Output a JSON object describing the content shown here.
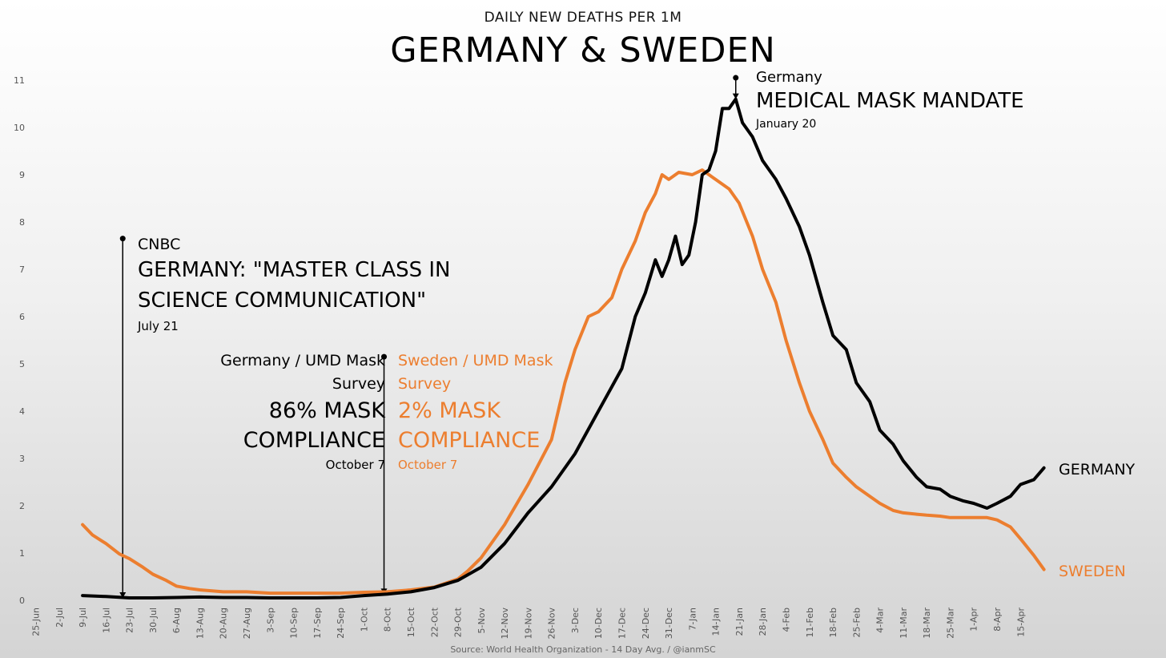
{
  "header": {
    "subtitle": "DAILY NEW DEATHS PER 1M",
    "title": "GERMANY & SWEDEN"
  },
  "footer": {
    "source": "Source: World Health Organization - 14 Day Avg.  / @ianmSC"
  },
  "colors": {
    "germany": "#000000",
    "sweden": "#ec7e2f",
    "text": "#000000",
    "axis_text": "#555555"
  },
  "annotations": {
    "cnbc": {
      "source": "CNBC",
      "headline_line1": "GERMANY: \"MASTER CLASS IN",
      "headline_line2": "SCIENCE COMMUNICATION\"",
      "date": "July 21"
    },
    "germany_survey": {
      "line1": "Germany / UMD Mask",
      "line2": "Survey",
      "value_line1": "86% MASK",
      "value_line2": "COMPLIANCE",
      "date": "October 7"
    },
    "sweden_survey": {
      "line1": "Sweden / UMD Mask",
      "line2": "Survey",
      "value_line1": "2% MASK",
      "value_line2": "COMPLIANCE",
      "date": "October 7"
    },
    "mandate": {
      "country": "Germany",
      "headline": "MEDICAL MASK MANDATE",
      "date": "January 20"
    },
    "end_labels": {
      "germany": "GERMANY",
      "sweden": "SWEDEN"
    }
  },
  "chart_data": {
    "type": "line",
    "title": "GERMANY & SWEDEN",
    "subtitle": "DAILY NEW DEATHS PER 1M",
    "xlabel": "",
    "ylabel": "",
    "ylim": [
      0,
      11
    ],
    "yticks": [
      0,
      1,
      2,
      3,
      4,
      5,
      6,
      7,
      8,
      9,
      10,
      11
    ],
    "x_start": "2020-06-25",
    "x_end": "2021-04-28",
    "xticks": [
      "25-Jun",
      "2-Jul",
      "9-Jul",
      "16-Jul",
      "23-Jul",
      "30-Jul",
      "6-Aug",
      "13-Aug",
      "20-Aug",
      "27-Aug",
      "3-Sep",
      "10-Sep",
      "17-Sep",
      "24-Sep",
      "1-Oct",
      "8-Oct",
      "15-Oct",
      "22-Oct",
      "29-Oct",
      "5-Nov",
      "12-Nov",
      "19-Nov",
      "26-Nov",
      "3-Dec",
      "10-Dec",
      "17-Dec",
      "24-Dec",
      "31-Dec",
      "7-Jan",
      "14-Jan",
      "21-Jan",
      "28-Jan",
      "4-Feb",
      "11-Feb",
      "18-Feb",
      "25-Feb",
      "4-Mar",
      "11-Mar",
      "18-Mar",
      "25-Mar",
      "1-Apr",
      "8-Apr",
      "15-Apr"
    ],
    "grid": false,
    "legend": "none",
    "series": [
      {
        "name": "GERMANY",
        "points": [
          [
            "2020-07-09",
            0.1
          ],
          [
            "2020-07-16",
            0.08
          ],
          [
            "2020-07-23",
            0.05
          ],
          [
            "2020-07-30",
            0.05
          ],
          [
            "2020-08-06",
            0.06
          ],
          [
            "2020-08-13",
            0.07
          ],
          [
            "2020-08-20",
            0.06
          ],
          [
            "2020-08-27",
            0.06
          ],
          [
            "2020-09-03",
            0.05
          ],
          [
            "2020-09-10",
            0.05
          ],
          [
            "2020-09-17",
            0.05
          ],
          [
            "2020-09-24",
            0.06
          ],
          [
            "2020-10-01",
            0.1
          ],
          [
            "2020-10-08",
            0.13
          ],
          [
            "2020-10-15",
            0.18
          ],
          [
            "2020-10-22",
            0.27
          ],
          [
            "2020-10-29",
            0.42
          ],
          [
            "2020-11-05",
            0.7
          ],
          [
            "2020-11-12",
            1.2
          ],
          [
            "2020-11-19",
            1.85
          ],
          [
            "2020-11-26",
            2.4
          ],
          [
            "2020-12-03",
            3.1
          ],
          [
            "2020-12-10",
            4.0
          ],
          [
            "2020-12-17",
            4.9
          ],
          [
            "2020-12-21",
            6.0
          ],
          [
            "2020-12-24",
            6.5
          ],
          [
            "2020-12-27",
            7.2
          ],
          [
            "2020-12-29",
            6.85
          ],
          [
            "2020-12-31",
            7.2
          ],
          [
            "2021-01-02",
            7.7
          ],
          [
            "2021-01-04",
            7.1
          ],
          [
            "2021-01-06",
            7.3
          ],
          [
            "2021-01-08",
            8.0
          ],
          [
            "2021-01-10",
            9.0
          ],
          [
            "2021-01-12",
            9.1
          ],
          [
            "2021-01-14",
            9.5
          ],
          [
            "2021-01-16",
            10.4
          ],
          [
            "2021-01-18",
            10.4
          ],
          [
            "2021-01-20",
            10.6
          ],
          [
            "2021-01-22",
            10.1
          ],
          [
            "2021-01-25",
            9.8
          ],
          [
            "2021-01-28",
            9.3
          ],
          [
            "2021-02-01",
            8.9
          ],
          [
            "2021-02-04",
            8.5
          ],
          [
            "2021-02-08",
            7.9
          ],
          [
            "2021-02-11",
            7.3
          ],
          [
            "2021-02-15",
            6.3
          ],
          [
            "2021-02-18",
            5.6
          ],
          [
            "2021-02-22",
            5.3
          ],
          [
            "2021-02-25",
            4.6
          ],
          [
            "2021-03-01",
            4.2
          ],
          [
            "2021-03-04",
            3.6
          ],
          [
            "2021-03-08",
            3.3
          ],
          [
            "2021-03-11",
            2.95
          ],
          [
            "2021-03-15",
            2.6
          ],
          [
            "2021-03-18",
            2.4
          ],
          [
            "2021-03-22",
            2.35
          ],
          [
            "2021-03-25",
            2.2
          ],
          [
            "2021-03-29",
            2.1
          ],
          [
            "2021-04-01",
            2.05
          ],
          [
            "2021-04-05",
            1.95
          ],
          [
            "2021-04-08",
            2.05
          ],
          [
            "2021-04-12",
            2.2
          ],
          [
            "2021-04-15",
            2.45
          ],
          [
            "2021-04-19",
            2.55
          ],
          [
            "2021-04-22",
            2.8
          ]
        ]
      },
      {
        "name": "SWEDEN",
        "points": [
          [
            "2020-07-09",
            1.6
          ],
          [
            "2020-07-12",
            1.38
          ],
          [
            "2020-07-16",
            1.2
          ],
          [
            "2020-07-20",
            0.98
          ],
          [
            "2020-07-23",
            0.88
          ],
          [
            "2020-07-27",
            0.7
          ],
          [
            "2020-07-30",
            0.55
          ],
          [
            "2020-08-03",
            0.42
          ],
          [
            "2020-08-06",
            0.3
          ],
          [
            "2020-08-10",
            0.25
          ],
          [
            "2020-08-13",
            0.22
          ],
          [
            "2020-08-20",
            0.18
          ],
          [
            "2020-08-27",
            0.18
          ],
          [
            "2020-09-03",
            0.15
          ],
          [
            "2020-09-10",
            0.15
          ],
          [
            "2020-09-17",
            0.15
          ],
          [
            "2020-09-24",
            0.15
          ],
          [
            "2020-10-01",
            0.17
          ],
          [
            "2020-10-08",
            0.18
          ],
          [
            "2020-10-15",
            0.22
          ],
          [
            "2020-10-22",
            0.28
          ],
          [
            "2020-10-29",
            0.45
          ],
          [
            "2020-11-01",
            0.62
          ],
          [
            "2020-11-05",
            0.9
          ],
          [
            "2020-11-12",
            1.6
          ],
          [
            "2020-11-19",
            2.45
          ],
          [
            "2020-11-26",
            3.4
          ],
          [
            "2020-11-30",
            4.6
          ],
          [
            "2020-12-03",
            5.3
          ],
          [
            "2020-12-07",
            6.0
          ],
          [
            "2020-12-10",
            6.1
          ],
          [
            "2020-12-14",
            6.4
          ],
          [
            "2020-12-17",
            7.0
          ],
          [
            "2020-12-21",
            7.6
          ],
          [
            "2020-12-24",
            8.2
          ],
          [
            "2020-12-27",
            8.6
          ],
          [
            "2020-12-29",
            9.0
          ],
          [
            "2020-12-31",
            8.9
          ],
          [
            "2021-01-03",
            9.05
          ],
          [
            "2021-01-07",
            9.0
          ],
          [
            "2021-01-10",
            9.1
          ],
          [
            "2021-01-14",
            8.9
          ],
          [
            "2021-01-18",
            8.7
          ],
          [
            "2021-01-21",
            8.4
          ],
          [
            "2021-01-25",
            7.7
          ],
          [
            "2021-01-28",
            7.0
          ],
          [
            "2021-02-01",
            6.3
          ],
          [
            "2021-02-04",
            5.5
          ],
          [
            "2021-02-08",
            4.6
          ],
          [
            "2021-02-11",
            4.0
          ],
          [
            "2021-02-15",
            3.4
          ],
          [
            "2021-02-18",
            2.9
          ],
          [
            "2021-02-22",
            2.6
          ],
          [
            "2021-02-25",
            2.4
          ],
          [
            "2021-03-01",
            2.2
          ],
          [
            "2021-03-04",
            2.05
          ],
          [
            "2021-03-08",
            1.9
          ],
          [
            "2021-03-11",
            1.85
          ],
          [
            "2021-03-15",
            1.82
          ],
          [
            "2021-03-18",
            1.8
          ],
          [
            "2021-03-22",
            1.78
          ],
          [
            "2021-03-25",
            1.75
          ],
          [
            "2021-03-29",
            1.75
          ],
          [
            "2021-04-01",
            1.75
          ],
          [
            "2021-04-05",
            1.75
          ],
          [
            "2021-04-08",
            1.7
          ],
          [
            "2021-04-12",
            1.55
          ],
          [
            "2021-04-15",
            1.3
          ],
          [
            "2021-04-19",
            0.95
          ],
          [
            "2021-04-22",
            0.65
          ]
        ]
      }
    ],
    "markers": [
      {
        "label": "CNBC",
        "date": "2020-07-21",
        "top": 7.65,
        "bottom": 0.05
      },
      {
        "label": "UMD Mask Survey",
        "date": "2020-10-07",
        "top": 5.15,
        "bottom": 0.13
      },
      {
        "label": "Germany Mask Mandate",
        "date": "2021-01-20",
        "top": 11.05,
        "bottom": 10.6
      }
    ]
  }
}
